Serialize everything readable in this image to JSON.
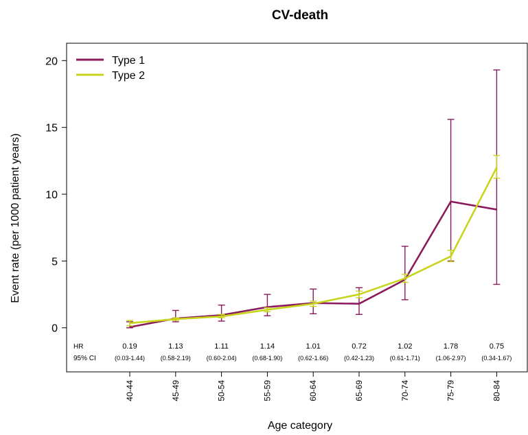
{
  "chart_data": {
    "type": "line",
    "title": "CV-death",
    "xlabel": "Age category",
    "ylabel": "Event rate (per 1000 patient years)",
    "categories": [
      "40-44",
      "45-49",
      "50-54",
      "55-59",
      "60-64",
      "65-69",
      "70-74",
      "75-79",
      "80-84"
    ],
    "ylim": [
      -3.3,
      21.3
    ],
    "yticks": [
      0,
      5,
      10,
      15,
      20
    ],
    "grid": false,
    "legend_position": "top-left",
    "series": [
      {
        "name": "Type 1",
        "color": "#8b1a5c",
        "values": [
          0.05,
          0.7,
          0.95,
          1.55,
          1.85,
          1.8,
          3.6,
          9.45,
          8.85
        ],
        "ci_low": [
          0.0,
          0.45,
          0.5,
          0.9,
          1.05,
          1.0,
          2.1,
          5.0,
          3.25
        ],
        "ci_high": [
          0.45,
          1.3,
          1.7,
          2.5,
          2.9,
          3.0,
          6.1,
          15.6,
          19.3
        ]
      },
      {
        "name": "Type 2",
        "color": "#c8d41c",
        "values": [
          0.35,
          0.65,
          0.85,
          1.35,
          1.8,
          2.5,
          3.7,
          5.35,
          12.0
        ],
        "ci_low": [
          0.15,
          0.55,
          0.75,
          1.2,
          1.6,
          2.25,
          3.4,
          4.95,
          11.2
        ],
        "ci_high": [
          0.55,
          0.75,
          1.0,
          1.5,
          2.0,
          2.75,
          4.0,
          5.8,
          12.9
        ]
      }
    ],
    "hr_label": "HR",
    "ci_label": "95% CI",
    "hr_values": [
      "0.19",
      "1.13",
      "1.11",
      "1.14",
      "1.01",
      "0.72",
      "1.02",
      "1.78",
      "0.75"
    ],
    "ci_values": [
      "(0.03-1.44)",
      "(0.58-2.19)",
      "(0.60-2.04)",
      "(0.68-1.90)",
      "(0.62-1.66)",
      "(0.42-1.23)",
      "(0.61-1.71)",
      "(1.06-2.97)",
      "(0.34-1.67)"
    ]
  }
}
